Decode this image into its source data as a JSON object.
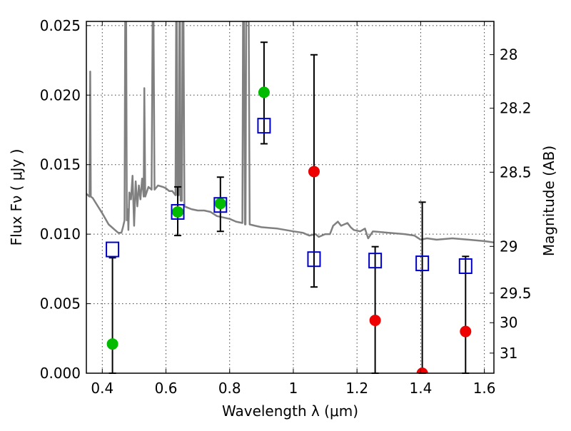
{
  "chart_data": {
    "type": "scatter",
    "xlabel": "Wavelength  λ (μm)",
    "ylabel": "Flux  Fν  ( μJy )",
    "y2label": "Magnitude (AB)",
    "xlim": [
      0.35,
      1.63
    ],
    "ylim": [
      0.0,
      0.0253
    ],
    "x_ticks": [
      0.4,
      0.6,
      0.8,
      1.0,
      1.2,
      1.4,
      1.6
    ],
    "x_tick_labels": [
      "0.4",
      "0.6",
      "0.8",
      "1",
      "1.2",
      "1.4",
      "1.6"
    ],
    "y_ticks": [
      0.0,
      0.005,
      0.01,
      0.015,
      0.02,
      0.025
    ],
    "y_tick_labels": [
      "0.000",
      "0.005",
      "0.010",
      "0.015",
      "0.020",
      "0.025"
    ],
    "right_ticks": [
      {
        "mag": 28,
        "label": "28"
      },
      {
        "mag": 28.2,
        "label": "28.2"
      },
      {
        "mag": 28.5,
        "label": "28.5"
      },
      {
        "mag": 29,
        "label": "29"
      },
      {
        "mag": 29.5,
        "label": "29.5"
      },
      {
        "mag": 30,
        "label": "30"
      },
      {
        "mag": 31,
        "label": "31"
      }
    ],
    "grid": true,
    "colors": {
      "model": "#808080",
      "green": "#00bb00",
      "red": "#ee0000",
      "blue": "#0000cc",
      "errorbar": "#000000"
    },
    "model_spectrum": [
      [
        0.35,
        0.0129
      ],
      [
        0.36,
        0.0127
      ],
      [
        0.362,
        0.0217
      ],
      [
        0.364,
        0.0127
      ],
      [
        0.37,
        0.0126
      ],
      [
        0.4,
        0.0115
      ],
      [
        0.42,
        0.0107
      ],
      [
        0.44,
        0.0103
      ],
      [
        0.45,
        0.0101
      ],
      [
        0.46,
        0.0101
      ],
      [
        0.465,
        0.0105
      ],
      [
        0.47,
        0.011
      ],
      [
        0.472,
        0.0253
      ],
      [
        0.475,
        0.0253
      ],
      [
        0.477,
        0.011
      ],
      [
        0.48,
        0.0118
      ],
      [
        0.482,
        0.0103
      ],
      [
        0.485,
        0.013
      ],
      [
        0.49,
        0.0125
      ],
      [
        0.495,
        0.0142
      ],
      [
        0.5,
        0.0106
      ],
      [
        0.505,
        0.0138
      ],
      [
        0.51,
        0.012
      ],
      [
        0.515,
        0.0135
      ],
      [
        0.52,
        0.0125
      ],
      [
        0.525,
        0.014
      ],
      [
        0.53,
        0.0127
      ],
      [
        0.532,
        0.0205
      ],
      [
        0.535,
        0.0127
      ],
      [
        0.545,
        0.0134
      ],
      [
        0.555,
        0.0132
      ],
      [
        0.558,
        0.0253
      ],
      [
        0.561,
        0.0253
      ],
      [
        0.564,
        0.0132
      ],
      [
        0.575,
        0.0135
      ],
      [
        0.59,
        0.0134
      ],
      [
        0.6,
        0.0133
      ],
      [
        0.61,
        0.0131
      ],
      [
        0.62,
        0.0131
      ],
      [
        0.63,
        0.0128
      ],
      [
        0.632,
        0.0253
      ],
      [
        0.634,
        0.0253
      ],
      [
        0.636,
        0.0128
      ],
      [
        0.64,
        0.0128
      ],
      [
        0.642,
        0.0253
      ],
      [
        0.644,
        0.0253
      ],
      [
        0.646,
        0.0124
      ],
      [
        0.65,
        0.0124
      ],
      [
        0.652,
        0.0253
      ],
      [
        0.655,
        0.0253
      ],
      [
        0.658,
        0.012
      ],
      [
        0.68,
        0.0118
      ],
      [
        0.7,
        0.0117
      ],
      [
        0.72,
        0.0117
      ],
      [
        0.74,
        0.0116
      ],
      [
        0.76,
        0.0113
      ],
      [
        0.8,
        0.0111
      ],
      [
        0.82,
        0.0109
      ],
      [
        0.84,
        0.0108
      ],
      [
        0.842,
        0.0253
      ],
      [
        0.845,
        0.0253
      ],
      [
        0.848,
        0.0107
      ],
      [
        0.85,
        0.0107
      ],
      [
        0.852,
        0.0253
      ],
      [
        0.856,
        0.0253
      ],
      [
        0.86,
        0.0253
      ],
      [
        0.863,
        0.0107
      ],
      [
        0.88,
        0.0106
      ],
      [
        0.9,
        0.0105
      ],
      [
        0.95,
        0.0104
      ],
      [
        1.0,
        0.0102
      ],
      [
        1.03,
        0.0101
      ],
      [
        1.05,
        0.0099
      ],
      [
        1.07,
        0.01
      ],
      [
        1.08,
        0.0098
      ],
      [
        1.1,
        0.01
      ],
      [
        1.115,
        0.01
      ],
      [
        1.125,
        0.0106
      ],
      [
        1.14,
        0.0109
      ],
      [
        1.15,
        0.0106
      ],
      [
        1.17,
        0.0108
      ],
      [
        1.18,
        0.0105
      ],
      [
        1.19,
        0.0103
      ],
      [
        1.21,
        0.0102
      ],
      [
        1.225,
        0.0104
      ],
      [
        1.235,
        0.0097
      ],
      [
        1.25,
        0.0102
      ],
      [
        1.3,
        0.0101
      ],
      [
        1.35,
        0.01
      ],
      [
        1.38,
        0.0099
      ],
      [
        1.4,
        0.0096
      ],
      [
        1.42,
        0.0097
      ],
      [
        1.45,
        0.0096
      ],
      [
        1.5,
        0.0097
      ],
      [
        1.55,
        0.0096
      ],
      [
        1.6,
        0.0095
      ],
      [
        1.63,
        0.0094
      ]
    ],
    "green_points": [
      {
        "x": 0.432,
        "y": 0.0021
      },
      {
        "x": 0.637,
        "y": 0.0116
      },
      {
        "x": 0.771,
        "y": 0.0122
      },
      {
        "x": 0.908,
        "y": 0.0202
      }
    ],
    "red_points": [
      {
        "x": 1.065,
        "y": 0.0145
      },
      {
        "x": 1.257,
        "y": 0.0038
      },
      {
        "x": 1.405,
        "y": 0.0
      },
      {
        "x": 1.541,
        "y": 0.003
      }
    ],
    "blue_points": [
      {
        "x": 0.432,
        "y": 0.0089,
        "err_lo": 0.0,
        "err_hi": 0.0083
      },
      {
        "x": 0.637,
        "y": 0.0116,
        "err_lo": 0.0099,
        "err_hi": 0.0134
      },
      {
        "x": 0.771,
        "y": 0.0121,
        "err_lo": 0.0102,
        "err_hi": 0.0141
      },
      {
        "x": 0.908,
        "y": 0.0178,
        "err_lo": 0.0165,
        "err_hi": 0.0238
      },
      {
        "x": 1.065,
        "y": 0.0082,
        "err_lo": 0.0062,
        "err_hi": 0.0229
      },
      {
        "x": 1.257,
        "y": 0.0081,
        "err_lo": 0.0,
        "err_hi": 0.0091
      },
      {
        "x": 1.405,
        "y": 0.0079,
        "err_lo": 0.0,
        "err_hi": 0.0123
      },
      {
        "x": 1.541,
        "y": 0.0077,
        "err_lo": 0.0,
        "err_hi": 0.0084
      }
    ]
  }
}
